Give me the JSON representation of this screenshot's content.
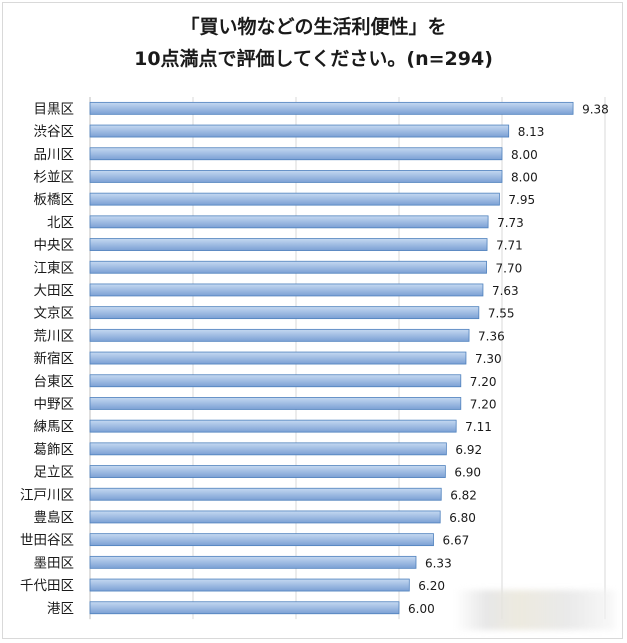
{
  "title_line1": "「買い物などの生活利便性」を",
  "title_line2": "10点満点で評価してください。(n=294)",
  "colors": {
    "bar_fill_top": "#c5d9f1",
    "bar_fill_bottom": "#7ba0d4",
    "bar_stroke": "#4f81bd",
    "grid": "#d9d9d9"
  },
  "chart_data": {
    "type": "bar",
    "orientation": "horizontal",
    "categories": [
      "目黒区",
      "渋谷区",
      "品川区",
      "杉並区",
      "板橋区",
      "北区",
      "中央区",
      "江東区",
      "大田区",
      "文京区",
      "荒川区",
      "新宿区",
      "台東区",
      "中野区",
      "練馬区",
      "葛飾区",
      "足立区",
      "江戸川区",
      "豊島区",
      "世田谷区",
      "墨田区",
      "千代田区",
      "港区"
    ],
    "values": [
      9.38,
      8.13,
      8.0,
      8.0,
      7.95,
      7.73,
      7.71,
      7.7,
      7.63,
      7.55,
      7.36,
      7.3,
      7.2,
      7.2,
      7.11,
      6.92,
      6.9,
      6.82,
      6.8,
      6.67,
      6.33,
      6.2,
      6.0
    ],
    "value_labels": [
      "9.38",
      "8.13",
      "8.00",
      "8.00",
      "7.95",
      "7.73",
      "7.71",
      "7.70",
      "7.63",
      "7.55",
      "7.36",
      "7.30",
      "7.20",
      "7.20",
      "7.11",
      "6.92",
      "6.90",
      "6.82",
      "6.80",
      "6.67",
      "6.33",
      "6.20",
      "6.00"
    ],
    "xlim": [
      0,
      10
    ],
    "grid": true
  }
}
